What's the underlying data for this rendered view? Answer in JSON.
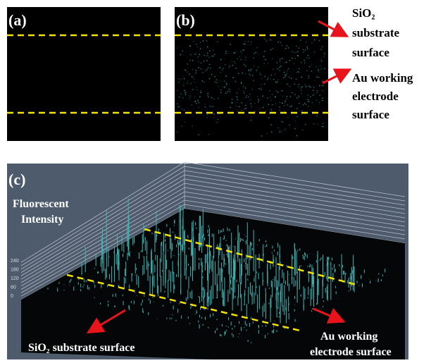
{
  "panels": {
    "a": {
      "label": "(a)"
    },
    "b": {
      "label": "(b)",
      "annotations": [
        [
          "SiO₂",
          "substrate",
          "surface"
        ],
        [
          "Au working",
          "electrode",
          "surface"
        ]
      ]
    },
    "c": {
      "label": "(c)",
      "axis_title": [
        "Fluorescent",
        "Intensity"
      ],
      "ticks": [
        "240",
        "180",
        "120",
        "60",
        "0"
      ],
      "left_annotation": "SiO₂ substrate surface",
      "right_annotation": [
        "Au working",
        "electrode surface"
      ]
    }
  }
}
